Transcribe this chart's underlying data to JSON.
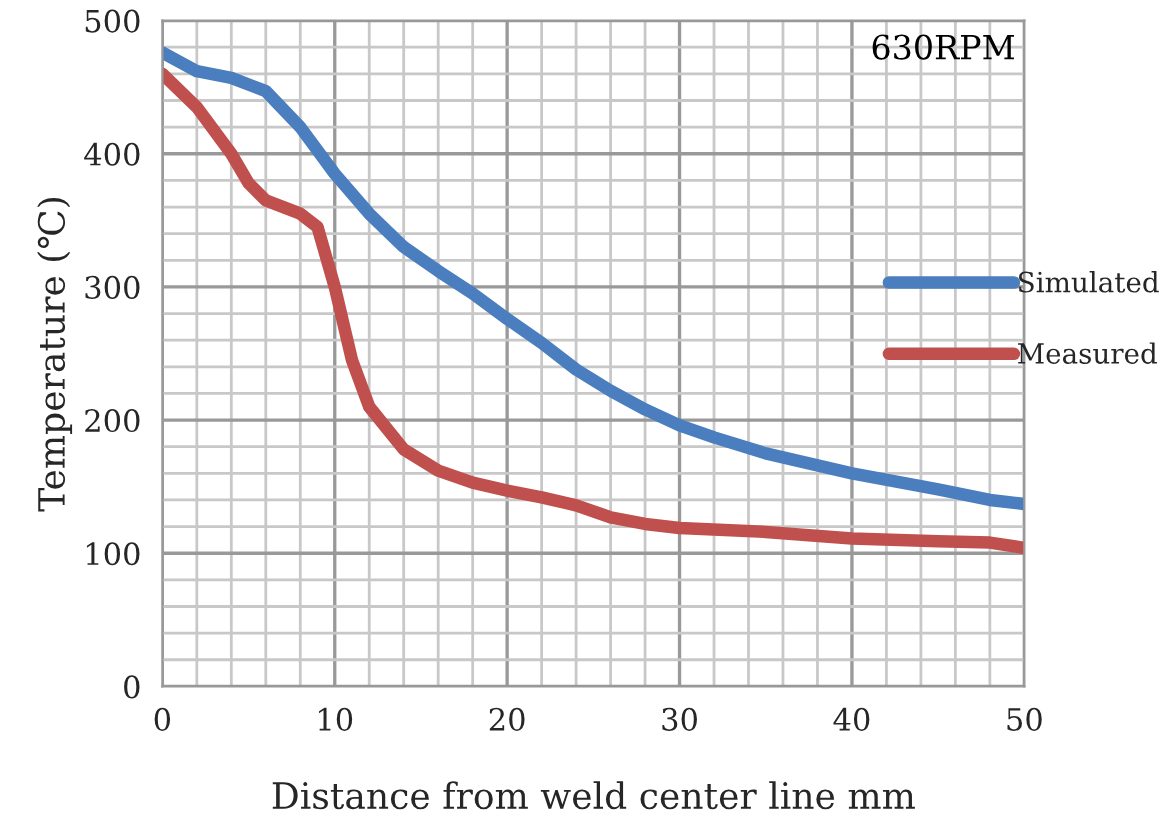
{
  "chart_data": {
    "type": "line",
    "xlabel": "Distance from weld center line mm",
    "ylabel": "Temperature (℃)",
    "annotations": [
      "630RPM"
    ],
    "xlim": [
      0,
      50
    ],
    "xticks": [
      0,
      10,
      20,
      30,
      40,
      50
    ],
    "ylim": [
      0,
      500
    ],
    "yticks": [
      0,
      100,
      200,
      300,
      400,
      500
    ],
    "grid": true,
    "legend": "right",
    "line_style": "solid",
    "marker": "none",
    "series": [
      {
        "name": "Simulated",
        "color": "#4a7ebf",
        "x": [
          0,
          2,
          4,
          6,
          8,
          10,
          12,
          14,
          16,
          18,
          20,
          22,
          24,
          26,
          28,
          30,
          32,
          35,
          40,
          45,
          48,
          50
        ],
        "values": [
          476,
          462,
          457,
          447,
          420,
          385,
          355,
          330,
          312,
          295,
          276,
          258,
          238,
          222,
          208,
          196,
          187,
          175,
          160,
          148,
          140,
          137
        ]
      },
      {
        "name": "Measured",
        "color": "#c0504d",
        "x": [
          0,
          2,
          4,
          5,
          6,
          8,
          9,
          10,
          11,
          12,
          14,
          16,
          18,
          20,
          22,
          24,
          26,
          28,
          30,
          35,
          40,
          45,
          48,
          50
        ],
        "values": [
          460,
          435,
          400,
          378,
          365,
          355,
          345,
          300,
          245,
          210,
          178,
          162,
          153,
          147,
          142,
          136,
          127,
          122,
          119,
          116,
          111,
          109,
          108,
          104
        ]
      }
    ]
  }
}
